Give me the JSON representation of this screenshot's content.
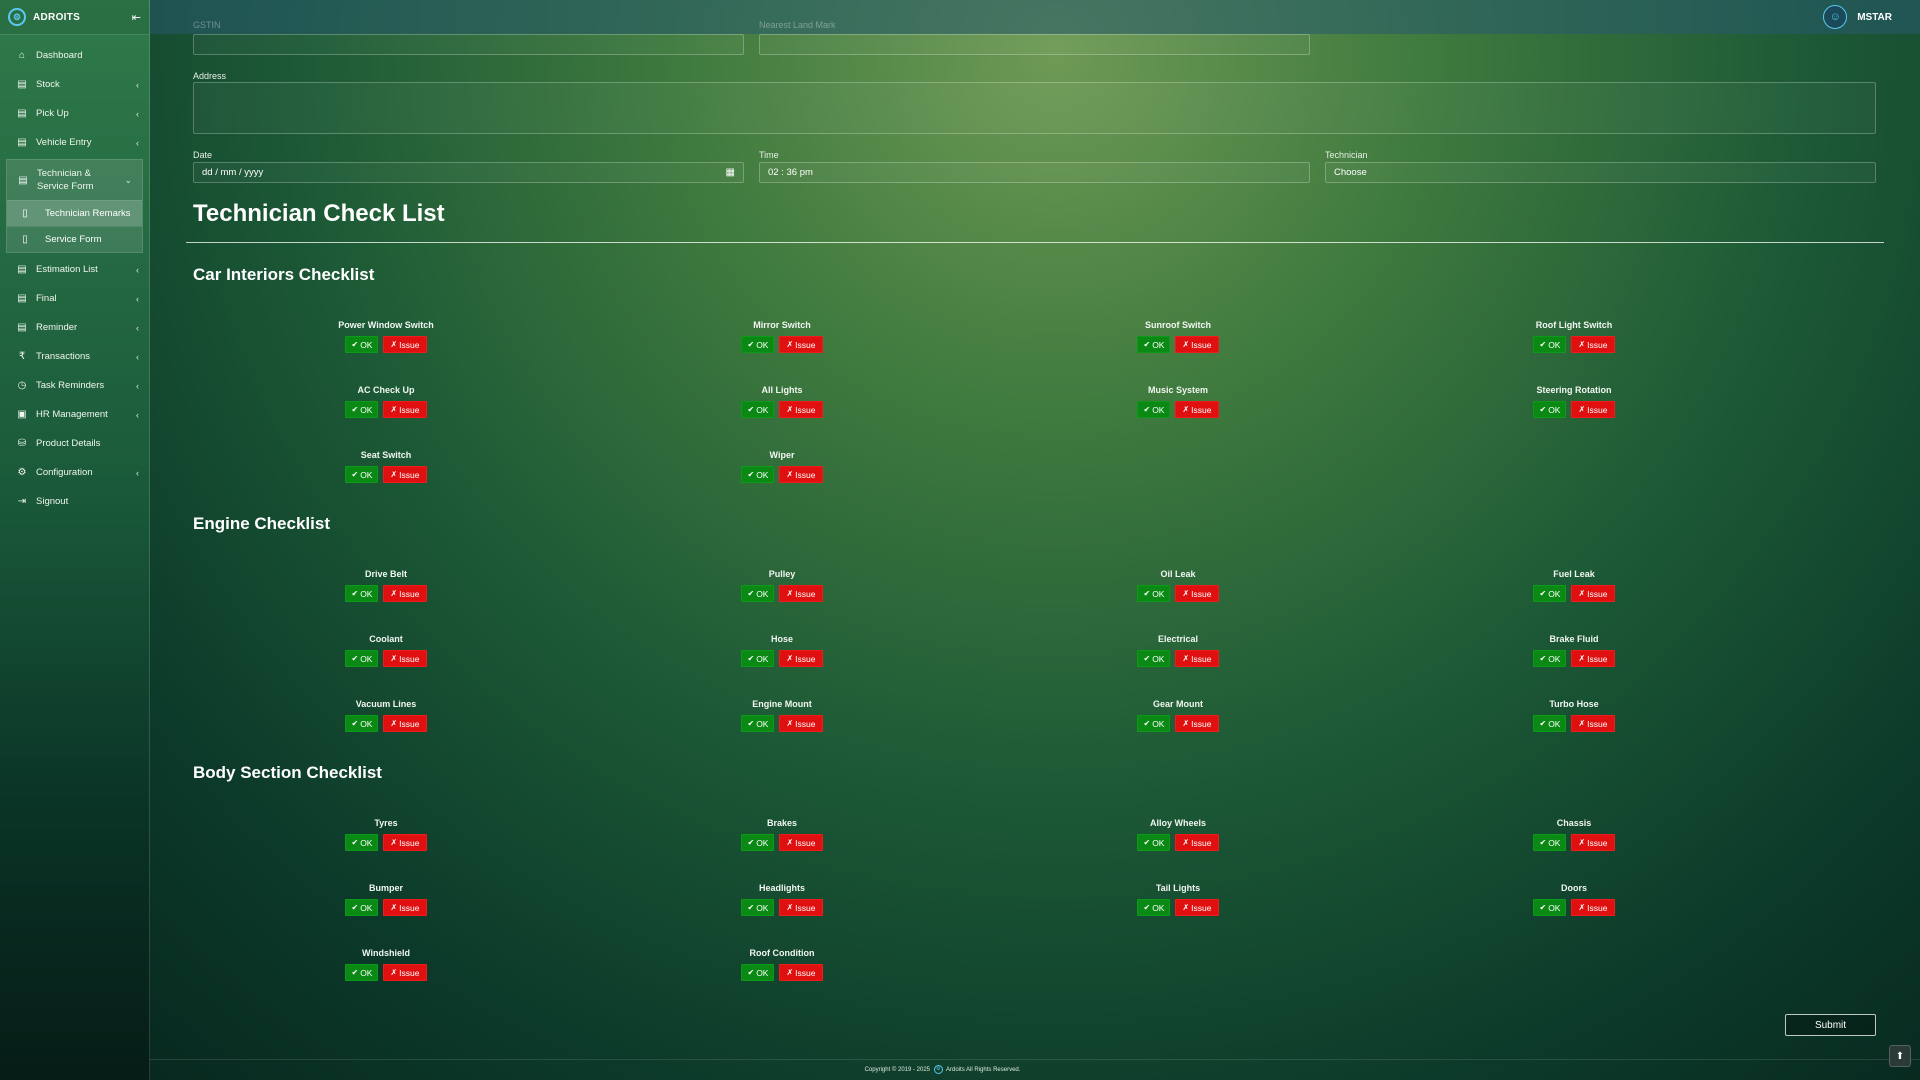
{
  "sidebar": {
    "brand": "ADROITS",
    "items": [
      {
        "label": "Dashboard",
        "icon": "home-icon",
        "chevron": false
      },
      {
        "label": "Stock",
        "icon": "document-icon",
        "chevron": true
      },
      {
        "label": "Pick Up",
        "icon": "document-icon",
        "chevron": true
      },
      {
        "label": "Vehicle Entry",
        "icon": "document-icon",
        "chevron": true
      }
    ],
    "group": {
      "label": "Technician & Service Form",
      "subitems": [
        {
          "label": "Technician Remarks"
        },
        {
          "label": "Service Form"
        }
      ]
    },
    "items_after": [
      {
        "label": "Estimation List",
        "icon": "document-icon",
        "chevron": true
      },
      {
        "label": "Final",
        "icon": "document-icon",
        "chevron": true
      },
      {
        "label": "Reminder",
        "icon": "document-icon",
        "chevron": true
      },
      {
        "label": "Transactions",
        "icon": "rupee-icon",
        "chevron": true
      },
      {
        "label": "Task Reminders",
        "icon": "clock-icon",
        "chevron": true
      },
      {
        "label": "HR Management",
        "icon": "id-card-icon",
        "chevron": true
      },
      {
        "label": "Product Details",
        "icon": "database-icon",
        "chevron": false
      },
      {
        "label": "Configuration",
        "icon": "settings-icon",
        "chevron": true
      },
      {
        "label": "Signout",
        "icon": "signout-icon",
        "chevron": false
      }
    ]
  },
  "topbar": {
    "user": "MSTAR"
  },
  "form": {
    "gstin_label": "GSTIN",
    "landmark_label": "Nearest Land Mark",
    "address_label": "Address",
    "date_label": "Date",
    "date_value": "dd / mm / yyyy",
    "time_label": "Time",
    "time_value": "02 : 36  pm",
    "technician_label": "Technician",
    "technician_value": "Choose"
  },
  "page_title": "Technician Check List",
  "buttons": {
    "ok": "OK",
    "issue": "Issue",
    "submit": "Submit"
  },
  "sections": [
    {
      "title": "Car Interiors Checklist",
      "items": [
        "Power Window Switch",
        "Mirror Switch",
        "Sunroof Switch",
        "Roof Light Switch",
        "AC Check Up",
        "All Lights",
        "Music System",
        "Steering Rotation",
        "Seat Switch",
        "Wiper"
      ]
    },
    {
      "title": "Engine Checklist",
      "items": [
        "Drive Belt",
        "Pulley",
        "Oil Leak",
        "Fuel Leak",
        "Coolant",
        "Hose",
        "Electrical",
        "Brake Fluid",
        "Vacuum Lines",
        "Engine Mount",
        "Gear Mount",
        "Turbo Hose"
      ]
    },
    {
      "title": "Body Section Checklist",
      "items": [
        "Tyres",
        "Brakes",
        "Alloy Wheels",
        "Chassis",
        "Bumper",
        "Headlights",
        "Tail Lights",
        "Doors",
        "Windshield",
        "Roof Condition"
      ]
    }
  ],
  "footer": {
    "left": "Copyright © 2019 - 2025",
    "right": "Ardoits All Rights Reserved."
  }
}
